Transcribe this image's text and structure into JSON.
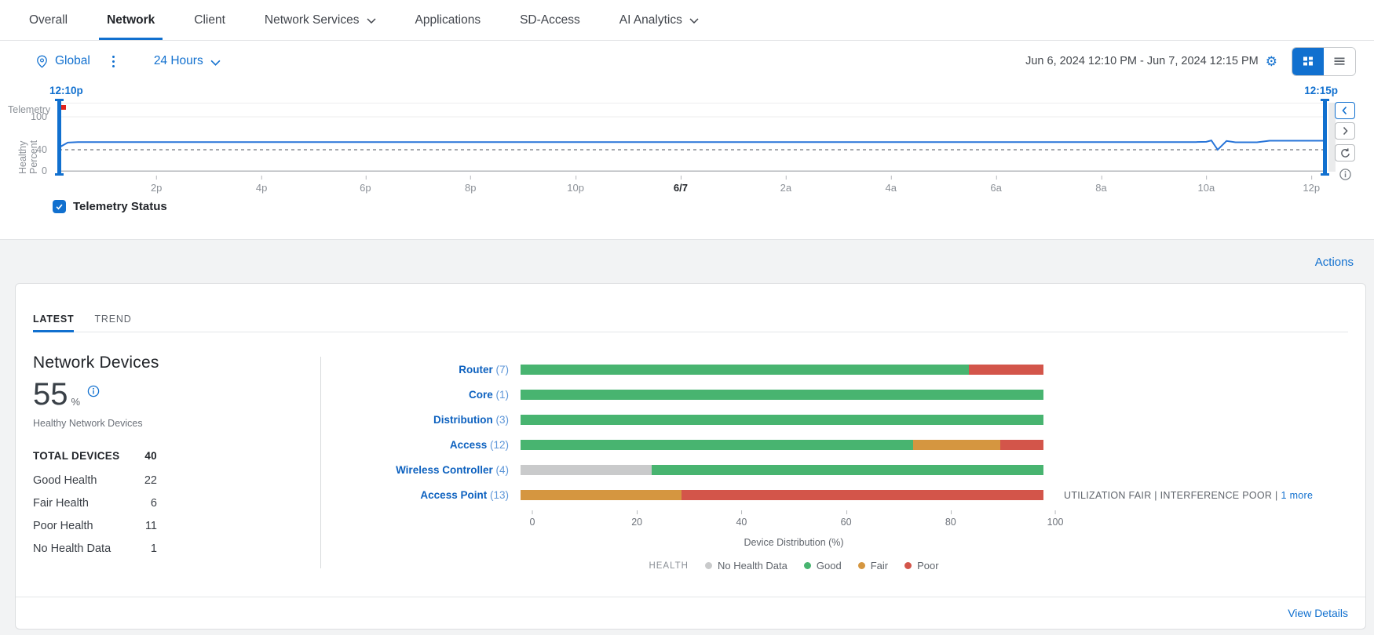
{
  "colors": {
    "accent": "#1170CF",
    "line": "#2774D8",
    "marker": "#E2231A",
    "good": "#48B470",
    "fair": "#D59640",
    "poor": "#D3554A",
    "no_data": "#C9CACB"
  },
  "nav": {
    "tabs": [
      {
        "label": "Overall",
        "active": false,
        "dropdown": false
      },
      {
        "label": "Network",
        "active": true,
        "dropdown": false
      },
      {
        "label": "Client",
        "active": false,
        "dropdown": false
      },
      {
        "label": "Network Services",
        "active": false,
        "dropdown": true
      },
      {
        "label": "Applications",
        "active": false,
        "dropdown": false
      },
      {
        "label": "SD-Access",
        "active": false,
        "dropdown": false
      },
      {
        "label": "AI Analytics",
        "active": false,
        "dropdown": true
      }
    ]
  },
  "toolbar": {
    "site": "Global",
    "time_range": "24 Hours",
    "date_range": "Jun 6, 2024 12:10 PM - Jun 7, 2024 12:15 PM"
  },
  "timeline": {
    "start_label": "12:10p",
    "end_label": "12:15p",
    "y_axis_title_1": "Telemetry",
    "y_axis_title_2": "Healthy Percent",
    "y_ticks": [
      "100",
      "40",
      "0"
    ],
    "x_ticks": [
      {
        "label": "2p",
        "pct": 7.7
      },
      {
        "label": "4p",
        "pct": 16.0
      },
      {
        "label": "6p",
        "pct": 24.2
      },
      {
        "label": "8p",
        "pct": 32.5
      },
      {
        "label": "10p",
        "pct": 40.8
      },
      {
        "label": "6/7",
        "pct": 49.1,
        "bold": true
      },
      {
        "label": "2a",
        "pct": 57.4
      },
      {
        "label": "4a",
        "pct": 65.7
      },
      {
        "label": "6a",
        "pct": 74.0
      },
      {
        "label": "8a",
        "pct": 82.3
      },
      {
        "label": "10a",
        "pct": 90.6
      },
      {
        "label": "12p",
        "pct": 98.9
      }
    ],
    "checkbox_label": "Telemetry Status",
    "checkbox_checked": true
  },
  "actions_label": "Actions",
  "card": {
    "tabs": [
      {
        "label": "LATEST",
        "active": true
      },
      {
        "label": "TREND",
        "active": false
      }
    ],
    "title": "Network Devices",
    "health_value": "55",
    "health_unit": "%",
    "health_caption": "Healthy Network Devices",
    "stats": [
      {
        "label": "TOTAL DEVICES",
        "value": "40",
        "head": true
      },
      {
        "label": "Good Health",
        "value": "22"
      },
      {
        "label": "Fair Health",
        "value": "6"
      },
      {
        "label": "Poor Health",
        "value": "11"
      },
      {
        "label": "No Health Data",
        "value": "1"
      }
    ],
    "bars": [
      {
        "name": "Router",
        "count": "(7)",
        "segments": [
          {
            "status": "good",
            "pct": 85.7
          },
          {
            "status": "poor",
            "pct": 14.3
          }
        ]
      },
      {
        "name": "Core",
        "count": "(1)",
        "segments": [
          {
            "status": "good",
            "pct": 100
          }
        ]
      },
      {
        "name": "Distribution",
        "count": "(3)",
        "segments": [
          {
            "status": "good",
            "pct": 100
          }
        ]
      },
      {
        "name": "Access",
        "count": "(12)",
        "segments": [
          {
            "status": "good",
            "pct": 75
          },
          {
            "status": "fair",
            "pct": 16.7
          },
          {
            "status": "poor",
            "pct": 8.3
          }
        ]
      },
      {
        "name": "Wireless Controller",
        "count": "(4)",
        "segments": [
          {
            "status": "no_data",
            "pct": 25
          },
          {
            "status": "good",
            "pct": 75
          }
        ]
      },
      {
        "name": "Access Point",
        "count": "(13)",
        "segments": [
          {
            "status": "fair",
            "pct": 30.8
          },
          {
            "status": "poor",
            "pct": 69.2
          }
        ],
        "note": {
          "text": "UTILIZATION FAIR | INTERFERENCE POOR |",
          "link": "1 more"
        }
      }
    ],
    "x_axis": {
      "ticks": [
        "0",
        "20",
        "40",
        "60",
        "80",
        "100"
      ],
      "label": "Device Distribution (%)"
    },
    "legend": {
      "title": "HEALTH",
      "items": [
        {
          "label": "No Health Data",
          "status": "no_data"
        },
        {
          "label": "Good",
          "status": "good"
        },
        {
          "label": "Fair",
          "status": "fair"
        },
        {
          "label": "Poor",
          "status": "poor"
        }
      ]
    },
    "view_details": "View Details"
  },
  "chart_data": [
    {
      "type": "line",
      "title": "Telemetry Status",
      "ylabel": "Telemetry Healthy Percent",
      "ylim": [
        0,
        100
      ],
      "y_ticks": [
        0,
        40,
        100
      ],
      "threshold_dashed_y": 40,
      "x_range": [
        "Jun 6, 2024 12:10 PM",
        "Jun 7, 2024 12:15 PM"
      ],
      "x_ticks": [
        "2p",
        "4p",
        "6p",
        "8p",
        "10p",
        "6/7",
        "2a",
        "4a",
        "6a",
        "8a",
        "10a",
        "12p"
      ],
      "legend": [
        "Telemetry Status"
      ],
      "series": [
        {
          "name": "Telemetry Status",
          "points_pct_value": [
            [
              0,
              44
            ],
            [
              0.7,
              53
            ],
            [
              1.5,
              54
            ],
            [
              45,
              54
            ],
            [
              89.8,
              54
            ],
            [
              90.6,
              54.5
            ],
            [
              91.0,
              57
            ],
            [
              91.5,
              40
            ],
            [
              92.2,
              56
            ],
            [
              92.9,
              53.5
            ],
            [
              94.6,
              53.5
            ],
            [
              95.6,
              56.5
            ],
            [
              100,
              56.5
            ]
          ]
        }
      ],
      "annotations": [
        {
          "type": "event-marker",
          "color": "#E2231A",
          "x_pct": 0.2,
          "position": "top-left"
        }
      ]
    },
    {
      "type": "bar",
      "orientation": "horizontal",
      "stacked": true,
      "categories": [
        "Router (7)",
        "Core (1)",
        "Distribution (3)",
        "Access (12)",
        "Wireless Controller (4)",
        "Access Point (13)"
      ],
      "series": [
        {
          "name": "No Health Data",
          "color": "#C9CACB",
          "values": [
            0,
            0,
            0,
            0,
            25,
            0
          ]
        },
        {
          "name": "Good",
          "color": "#48B470",
          "values": [
            85.7,
            100,
            100,
            75,
            75,
            0
          ]
        },
        {
          "name": "Fair",
          "color": "#D59640",
          "values": [
            0,
            0,
            0,
            16.7,
            0,
            30.8
          ]
        },
        {
          "name": "Poor",
          "color": "#D3554A",
          "values": [
            14.3,
            0,
            0,
            8.3,
            0,
            69.2
          ]
        }
      ],
      "xlabel": "Device Distribution (%)",
      "xlim": [
        0,
        100
      ],
      "x_ticks": [
        0,
        20,
        40,
        60,
        80,
        100
      ],
      "legend_position": "bottom"
    }
  ]
}
